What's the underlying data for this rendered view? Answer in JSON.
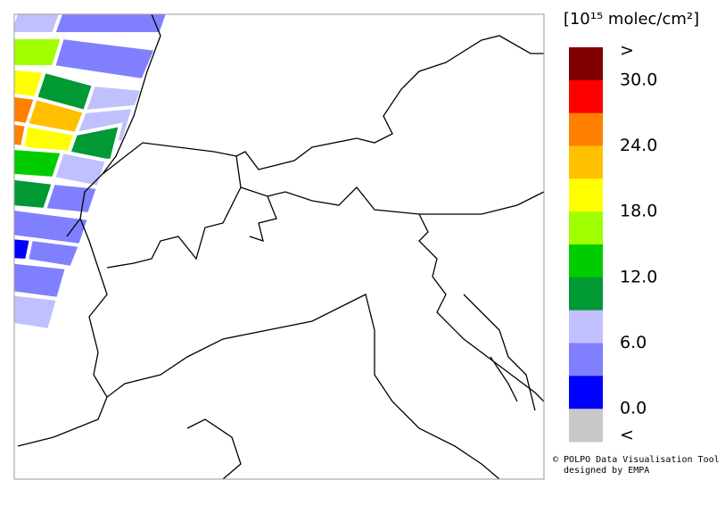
{
  "legend": {
    "title": "[10¹⁵ molec/cm²]",
    "labels": [
      ">",
      "30.0",
      "24.0",
      "18.0",
      "12.0",
      "6.0",
      "0.0",
      "<"
    ],
    "colors": [
      "#800000",
      "#ff0000",
      "#ff8000",
      "#ffc000",
      "#ffff00",
      "#a0ff00",
      "#00cc00",
      "#009933",
      "#c0c0ff",
      "#8080ff",
      "#0000ff",
      "#c8c8c8"
    ]
  },
  "footer": {
    "line1": "© POLPO Data Visualisation Tool",
    "line2": "designed by EMPA"
  }
}
